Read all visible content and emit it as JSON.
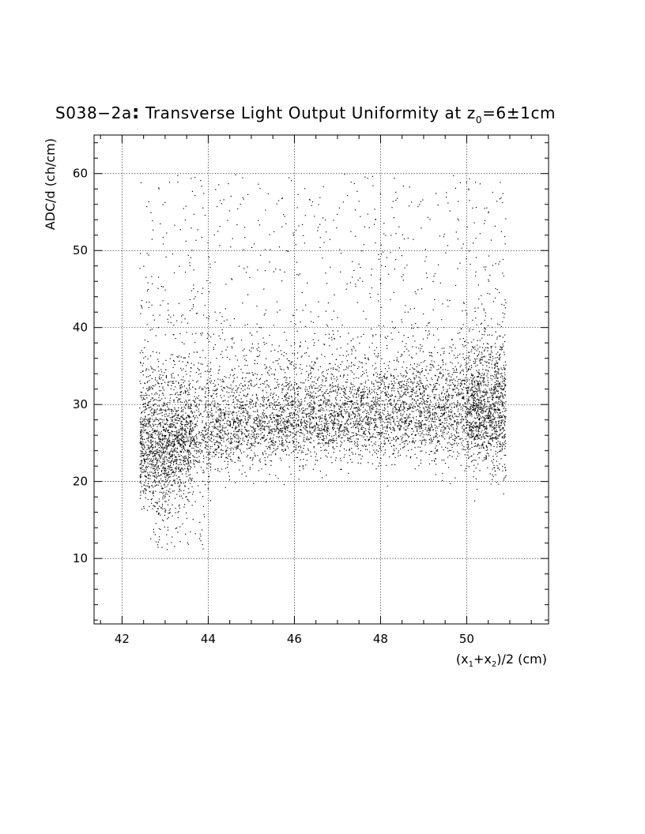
{
  "chart_data": {
    "type": "scatter",
    "title": {
      "prefix": "S038−2a",
      "colon": ":",
      "text": " Transverse Light Output Uniformity at z",
      "subscript": "0",
      "suffix": "=6±1cm"
    },
    "xlabel": {
      "open": "(x",
      "sub1": "1",
      "plus": "+x",
      "sub2": "2",
      "close": ")/2 (cm)"
    },
    "ylabel": "ADC/d (ch/cm)",
    "xlim": [
      41.35,
      51.9
    ],
    "ylim": [
      1.5,
      65
    ],
    "x_ticks": [
      42,
      44,
      46,
      48,
      50
    ],
    "y_ticks": [
      10,
      20,
      30,
      40,
      50,
      60
    ],
    "x_tick_labels": [
      "42",
      "44",
      "46",
      "48",
      "50"
    ],
    "y_tick_labels": [
      "10",
      "20",
      "30",
      "40",
      "50",
      "60"
    ],
    "grid": true,
    "points_description": "dense point cloud, x from 42.4 to 50.9 cm; band centre rises from about 25 ch/cm near x=43 to about 28.5 ch/cm near x=50; sparse outliers 10–60 ch/cm",
    "band_profile": [
      {
        "x": 42.5,
        "y_center": 24.5,
        "y_spread": 4.0
      },
      {
        "x": 43.0,
        "y_center": 23.5,
        "y_spread": 3.8
      },
      {
        "x": 43.5,
        "y_center": 25.0,
        "y_spread": 3.2
      },
      {
        "x": 44.0,
        "y_center": 26.0,
        "y_spread": 2.8
      },
      {
        "x": 45.0,
        "y_center": 27.0,
        "y_spread": 2.6
      },
      {
        "x": 46.0,
        "y_center": 27.5,
        "y_spread": 2.6
      },
      {
        "x": 47.0,
        "y_center": 27.8,
        "y_spread": 2.5
      },
      {
        "x": 48.0,
        "y_center": 28.0,
        "y_spread": 2.6
      },
      {
        "x": 49.0,
        "y_center": 28.5,
        "y_spread": 2.8
      },
      {
        "x": 50.0,
        "y_center": 28.5,
        "y_spread": 3.0
      },
      {
        "x": 50.8,
        "y_center": 29.0,
        "y_spread": 4.0
      }
    ],
    "x_range_of_points": [
      42.4,
      50.9
    ],
    "point_color": "#000000"
  }
}
